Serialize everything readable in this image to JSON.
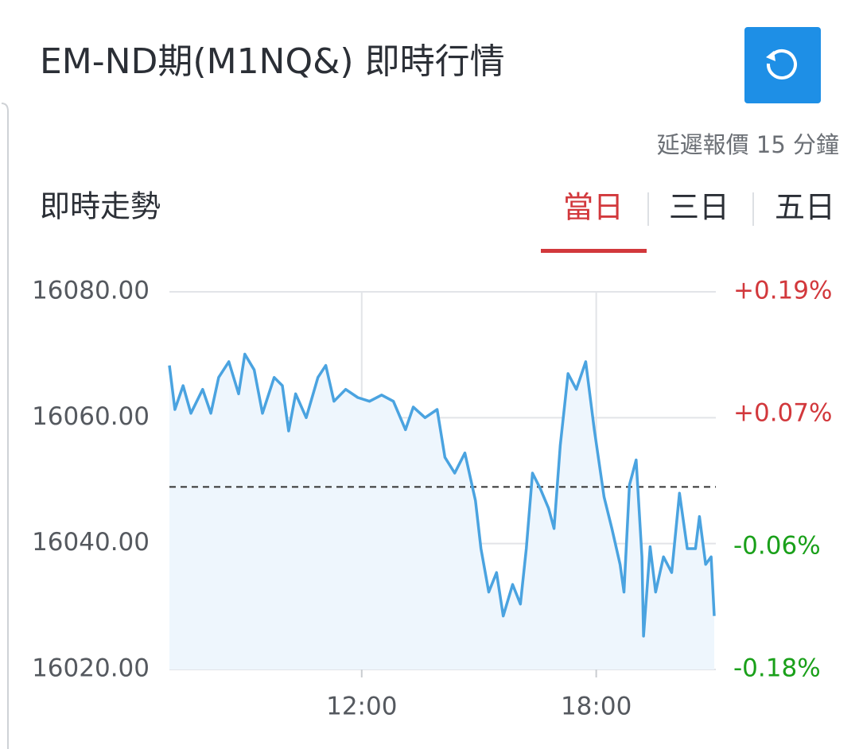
{
  "header": {
    "title": "EM-ND期(M1NQ&) 即時行情",
    "delay_note": "延遲報價 15 分鐘"
  },
  "section_title": "即時走勢",
  "tabs": [
    "當日",
    "三日",
    "五日"
  ],
  "active_tab": 0,
  "chart_data": {
    "type": "line",
    "x": [
      7.08,
      7.22,
      7.43,
      7.63,
      7.93,
      8.14,
      8.34,
      8.6,
      8.85,
      9.01,
      9.25,
      9.46,
      9.76,
      9.97,
      10.13,
      10.31,
      10.58,
      10.88,
      11.08,
      11.29,
      11.59,
      11.9,
      12.2,
      12.51,
      12.81,
      13.12,
      13.32,
      13.62,
      13.93,
      14.13,
      14.38,
      14.64,
      14.91,
      15.05,
      15.25,
      15.45,
      15.62,
      15.86,
      16.06,
      16.21,
      16.37,
      16.57,
      16.78,
      16.92,
      17.08,
      17.28,
      17.49,
      17.73,
      17.95,
      18.2,
      18.4,
      18.61,
      18.71,
      18.85,
      19.02,
      19.17,
      19.21,
      19.38,
      19.52,
      19.72,
      19.93,
      20.13,
      20.33,
      20.54,
      20.64,
      20.8,
      20.94,
      21.02
    ],
    "values": [
      16068.3,
      16061.3,
      16065.1,
      16060.7,
      16064.5,
      16060.7,
      16066.4,
      16068.9,
      16063.8,
      16070.1,
      16067.6,
      16060.7,
      16066.4,
      16065.1,
      16057.9,
      16063.8,
      16060.0,
      16066.4,
      16068.3,
      16062.6,
      16064.5,
      16063.2,
      16062.6,
      16063.6,
      16062.6,
      16058.1,
      16061.7,
      16060.0,
      16061.3,
      16053.7,
      16051.2,
      16054.4,
      16046.8,
      16039.2,
      16032.3,
      16035.4,
      16028.5,
      16033.5,
      16030.4,
      16039.2,
      16051.2,
      16048.7,
      16045.6,
      16042.4,
      16055.6,
      16067.0,
      16064.5,
      16068.9,
      16058.1,
      16047.4,
      16042.4,
      16036.7,
      16032.3,
      16049.3,
      16053.3,
      16037.9,
      16025.3,
      16039.5,
      16032.3,
      16037.9,
      16035.4,
      16048.0,
      16039.2,
      16039.2,
      16044.3,
      16036.7,
      16037.9,
      16028.5
    ],
    "color": "#4aa3e0",
    "fill_color": "#eef6fd",
    "reference": 16049,
    "grid": true,
    "xlim": [
      7.08,
      21.06
    ],
    "xticks": [
      {
        "value": 12,
        "label": "12:00"
      },
      {
        "value": 18,
        "label": "18:00"
      }
    ],
    "ylim": [
      16020,
      16080
    ],
    "yticks": [
      {
        "value": 16020,
        "label": "16020.00"
      },
      {
        "value": 16040,
        "label": "16040.00"
      },
      {
        "value": 16060,
        "label": "16060.00"
      },
      {
        "value": 16080,
        "label": "16080.00"
      }
    ],
    "y2lim": [
      -0.18,
      0.19
    ],
    "y2ticks": [
      {
        "value": -0.18,
        "label": "-0.18%"
      },
      {
        "value": -0.06,
        "label": "-0.06%"
      },
      {
        "value": 0.07,
        "label": "+0.07%"
      },
      {
        "value": 0.19,
        "label": "+0.19%"
      }
    ]
  }
}
